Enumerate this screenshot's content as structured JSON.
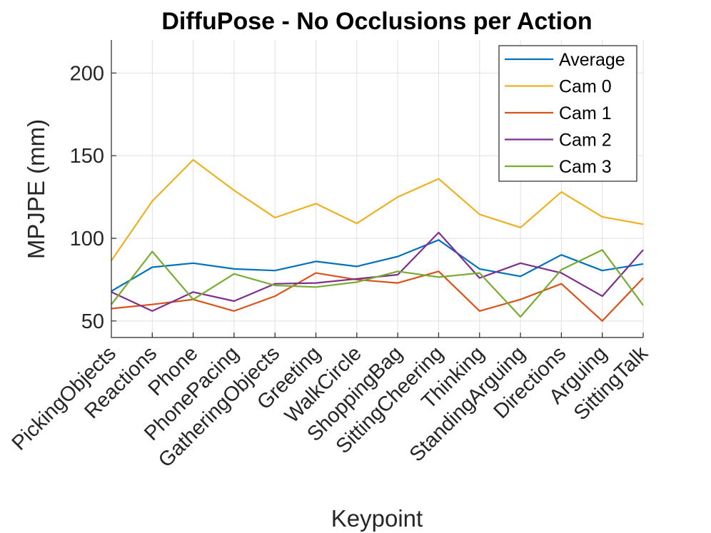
{
  "chart_data": {
    "type": "line",
    "title": "DiffuPose - No Occlusions per Action",
    "xlabel": "Keypoint",
    "ylabel": "MPJPE (mm)",
    "ylim": [
      40,
      220
    ],
    "yticks": [
      50,
      100,
      150,
      200
    ],
    "grid": true,
    "legend_position": "top-right",
    "categories": [
      "PickingObjects",
      "Reactions",
      "Phone",
      "PhonePacing",
      "GatheringObjects",
      "Greeting",
      "WalkCircle",
      "ShoppingBag",
      "SittingCheering",
      "Thinking",
      "StandingArguing",
      "Directions",
      "Arguing",
      "SittingTalk"
    ],
    "series": [
      {
        "name": "Average",
        "color": "#0072bd",
        "values": [
          68,
          82.5,
          85,
          81.5,
          80.5,
          86,
          83,
          89,
          99,
          81.5,
          77,
          90,
          80.5,
          84.5
        ]
      },
      {
        "name": "Cam 0",
        "color": "#edb120",
        "values": [
          86.5,
          122.5,
          147.5,
          129,
          112.5,
          121,
          109,
          125,
          136,
          114.5,
          106.5,
          128,
          113,
          108.5
        ]
      },
      {
        "name": "Cam 1",
        "color": "#d95319",
        "values": [
          57.5,
          60,
          63,
          56,
          65,
          79,
          75,
          73,
          80,
          56,
          63,
          72.5,
          50,
          76
        ]
      },
      {
        "name": "Cam 2",
        "color": "#7e2f8e",
        "values": [
          67.5,
          56,
          67.5,
          62,
          72.5,
          73,
          75.5,
          78,
          103.5,
          76,
          85,
          79,
          65,
          93
        ]
      },
      {
        "name": "Cam 3",
        "color": "#77ac30",
        "values": [
          60,
          92,
          63,
          78.5,
          71.5,
          70.5,
          73.5,
          80,
          76.5,
          79,
          52.5,
          81,
          93,
          59.5
        ]
      }
    ]
  }
}
